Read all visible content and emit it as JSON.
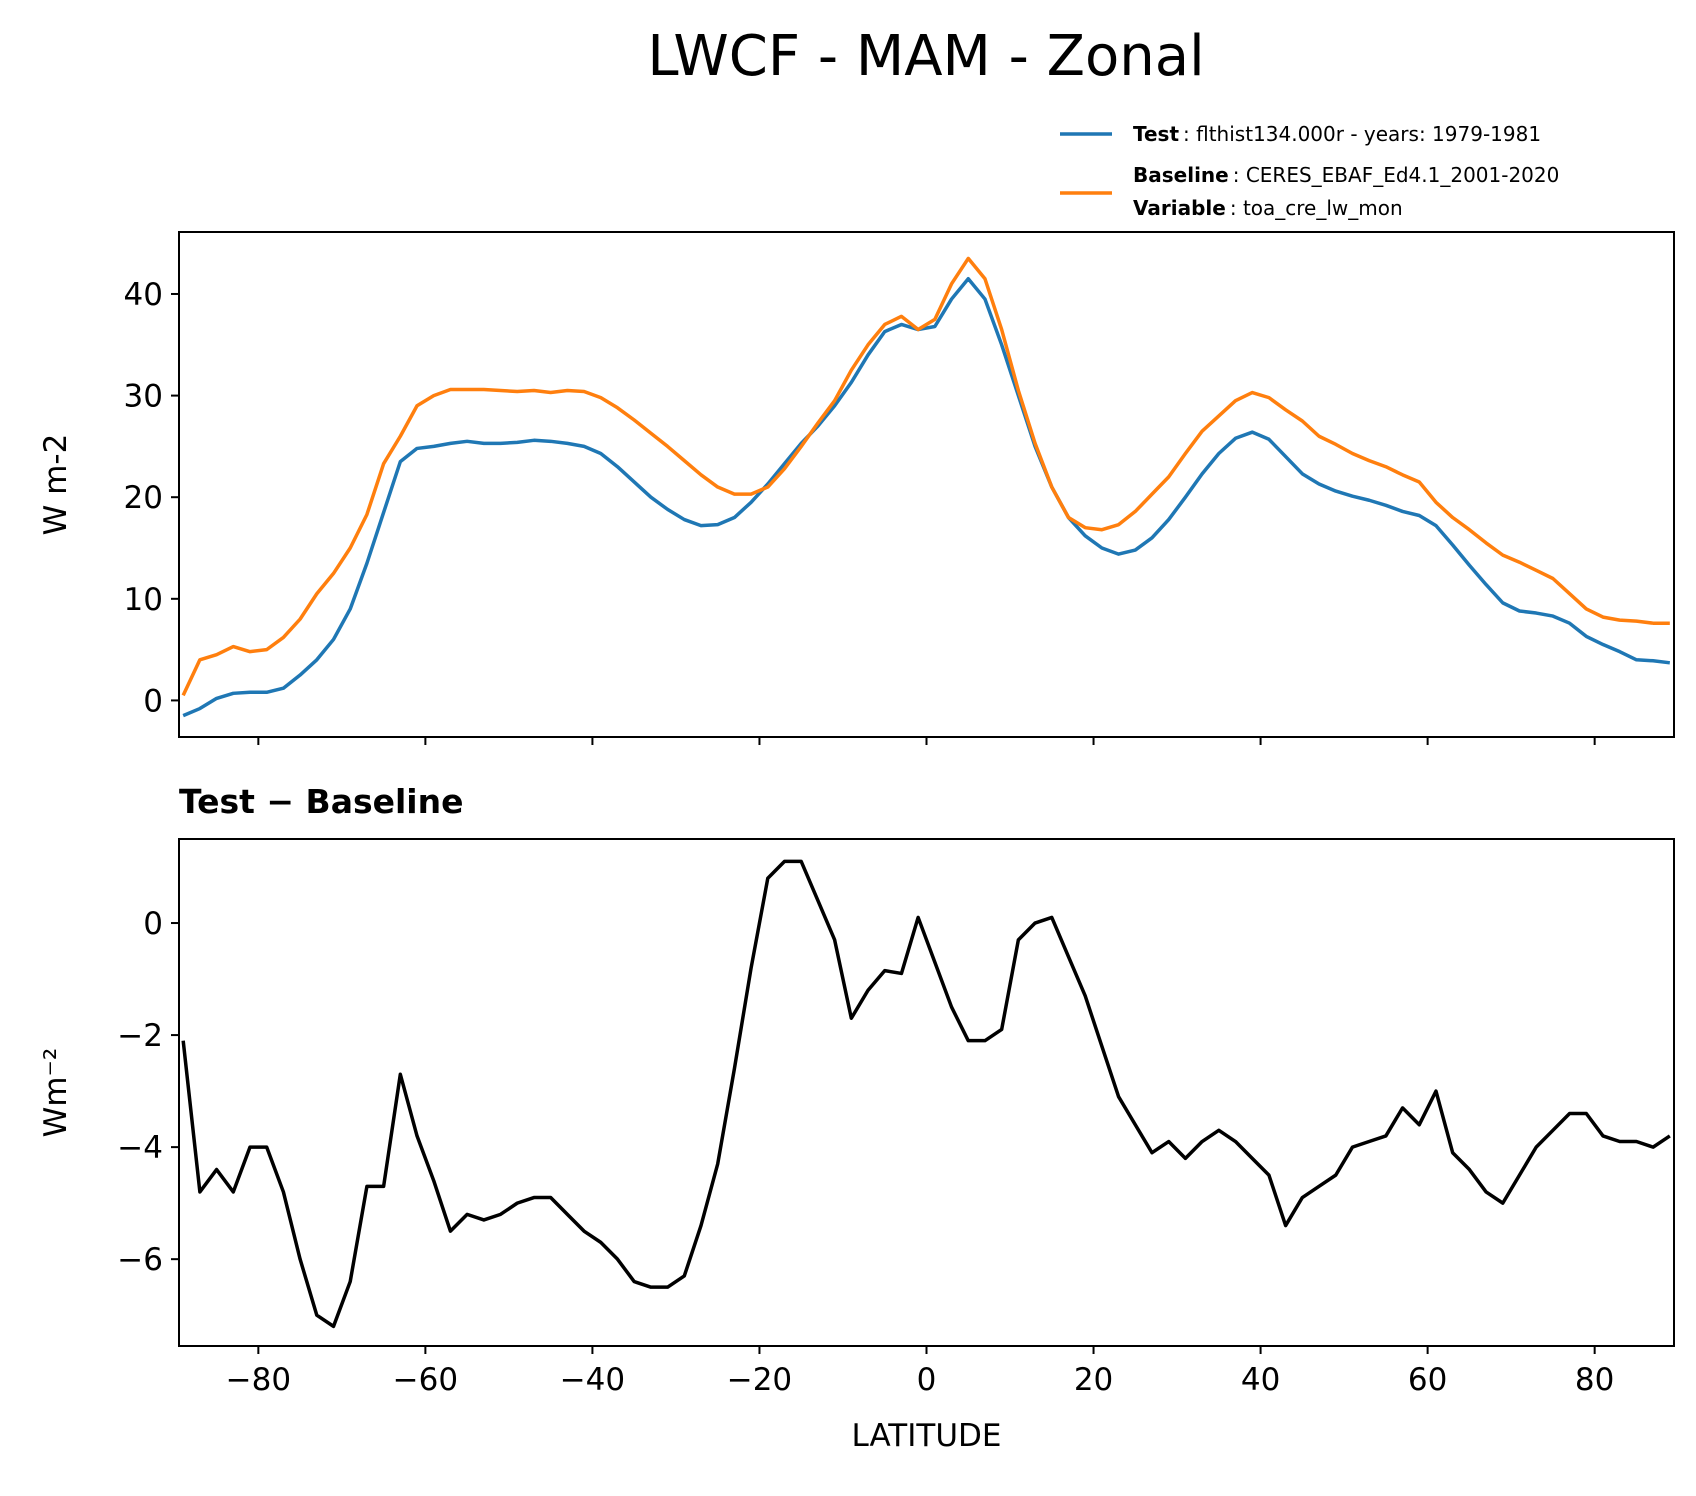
{
  "title": "LWCF - MAM - Zonal",
  "chart_data": [
    {
      "type": "line",
      "ylabel": "W m-2",
      "x": [
        -89,
        -87,
        -85,
        -83,
        -81,
        -79,
        -77,
        -75,
        -73,
        -71,
        -69,
        -67,
        -65,
        -63,
        -61,
        -59,
        -57,
        -55,
        -53,
        -51,
        -49,
        -47,
        -45,
        -43,
        -41,
        -39,
        -37,
        -35,
        -33,
        -31,
        -29,
        -27,
        -25,
        -23,
        -21,
        -19,
        -17,
        -15,
        -13,
        -11,
        -9,
        -7,
        -5,
        -3,
        -1,
        1,
        3,
        5,
        7,
        9,
        11,
        13,
        15,
        17,
        19,
        21,
        23,
        25,
        27,
        29,
        31,
        33,
        35,
        37,
        39,
        41,
        43,
        45,
        47,
        49,
        51,
        53,
        55,
        57,
        59,
        61,
        63,
        65,
        67,
        69,
        71,
        73,
        75,
        77,
        79,
        81,
        83,
        85,
        87,
        89
      ],
      "series": [
        {
          "name": "Test",
          "detail": ": flthist134.000r - years: 1979-1981",
          "color": "#1f77b4",
          "values": [
            -1.5,
            -0.8,
            0.2,
            0.7,
            0.8,
            0.8,
            1.2,
            2.5,
            4.0,
            6.0,
            9.0,
            13.5,
            18.5,
            23.5,
            24.8,
            25.0,
            25.3,
            25.5,
            25.3,
            25.3,
            25.4,
            25.6,
            25.5,
            25.3,
            25.0,
            24.3,
            23.0,
            21.5,
            20.0,
            18.8,
            17.8,
            17.2,
            17.3,
            18.0,
            19.5,
            21.3,
            23.3,
            25.3,
            27.0,
            29.0,
            31.3,
            34.0,
            36.3,
            37.0,
            36.5,
            36.8,
            39.5,
            41.5,
            39.5,
            35.0,
            30.0,
            25.0,
            21.0,
            18.0,
            16.2,
            15.0,
            14.4,
            14.8,
            16.0,
            17.8,
            20.0,
            22.3,
            24.3,
            25.8,
            26.4,
            25.7,
            24.0,
            22.3,
            21.3,
            20.6,
            20.1,
            19.7,
            19.2,
            18.6,
            18.2,
            17.2,
            15.3,
            13.3,
            11.4,
            9.6,
            8.8,
            8.6,
            8.3,
            7.6,
            6.3,
            5.5,
            4.8,
            4.0,
            3.9,
            3.7
          ]
        },
        {
          "name": "Baseline",
          "detail": ": CERES_EBAF_Ed4.1_2001-2020",
          "extra_name": "Variable",
          "extra_detail": ": toa_cre_lw_mon",
          "color": "#ff7f0e",
          "values": [
            0.5,
            4.0,
            4.5,
            5.3,
            4.8,
            5.0,
            6.2,
            8.0,
            10.5,
            12.5,
            15.0,
            18.3,
            23.3,
            26.0,
            29.0,
            30.0,
            30.6,
            30.6,
            30.6,
            30.5,
            30.4,
            30.5,
            30.3,
            30.5,
            30.4,
            29.8,
            28.8,
            27.6,
            26.3,
            25.0,
            23.6,
            22.2,
            21.0,
            20.3,
            20.3,
            21.0,
            22.8,
            25.0,
            27.3,
            29.5,
            32.5,
            35.0,
            37.0,
            37.8,
            36.5,
            37.5,
            41.0,
            43.5,
            41.5,
            36.5,
            30.5,
            25.3,
            21.0,
            18.0,
            17.0,
            16.8,
            17.3,
            18.6,
            20.3,
            22.0,
            24.3,
            26.5,
            28.0,
            29.5,
            30.3,
            29.8,
            28.6,
            27.5,
            26.0,
            25.2,
            24.3,
            23.6,
            23.0,
            22.2,
            21.5,
            19.5,
            18.0,
            16.8,
            15.5,
            14.3,
            13.6,
            12.8,
            12.0,
            10.5,
            9.0,
            8.2,
            7.9,
            7.8,
            7.6,
            7.6
          ]
        }
      ],
      "xlim": [
        -89.5,
        89.5
      ],
      "xticks": [
        -80,
        -60,
        -40,
        -20,
        0,
        20,
        40,
        60,
        80
      ],
      "ylim": [
        -3.6,
        46.1
      ],
      "yticks": [
        0,
        10,
        20,
        30,
        40
      ]
    },
    {
      "type": "line",
      "title": "Test − Baseline",
      "ylabel": "Wm⁻²",
      "xlabel": "LATITUDE",
      "x": [
        -89,
        -87,
        -85,
        -83,
        -81,
        -79,
        -77,
        -75,
        -73,
        -71,
        -69,
        -67,
        -65,
        -63,
        -61,
        -59,
        -57,
        -55,
        -53,
        -51,
        -49,
        -47,
        -45,
        -43,
        -41,
        -39,
        -37,
        -35,
        -33,
        -31,
        -29,
        -27,
        -25,
        -23,
        -21,
        -19,
        -17,
        -15,
        -13,
        -11,
        -9,
        -7,
        -5,
        -3,
        -1,
        1,
        3,
        5,
        7,
        9,
        11,
        13,
        15,
        17,
        19,
        21,
        23,
        25,
        27,
        29,
        31,
        33,
        35,
        37,
        39,
        41,
        43,
        45,
        47,
        49,
        51,
        53,
        55,
        57,
        59,
        61,
        63,
        65,
        67,
        69,
        71,
        73,
        75,
        77,
        79,
        81,
        83,
        85,
        87,
        89
      ],
      "series": [
        {
          "color": "#000000",
          "values": [
            -2.1,
            -4.8,
            -4.4,
            -4.8,
            -4.0,
            -4.0,
            -4.8,
            -6.0,
            -7.0,
            -7.2,
            -6.4,
            -4.7,
            -4.7,
            -2.7,
            -3.8,
            -4.6,
            -5.5,
            -5.2,
            -5.3,
            -5.2,
            -5.0,
            -4.9,
            -4.9,
            -5.2,
            -5.5,
            -5.7,
            -6.0,
            -6.4,
            -6.5,
            -6.5,
            -6.3,
            -5.4,
            -4.3,
            -2.6,
            -0.8,
            0.8,
            1.1,
            1.1,
            0.4,
            -0.3,
            -1.7,
            -1.2,
            -0.85,
            -0.9,
            0.1,
            -0.7,
            -1.5,
            -2.1,
            -2.1,
            -1.9,
            -0.3,
            0.0,
            0.1,
            -0.6,
            -1.3,
            -2.2,
            -3.1,
            -3.6,
            -4.1,
            -3.9,
            -4.2,
            -3.9,
            -3.7,
            -3.9,
            -4.2,
            -4.5,
            -5.4,
            -4.9,
            -4.7,
            -4.5,
            -4.0,
            -3.9,
            -3.8,
            -3.3,
            -3.6,
            -3.0,
            -4.1,
            -4.4,
            -4.8,
            -5.0,
            -4.5,
            -4.0,
            -3.7,
            -3.4,
            -3.4,
            -3.8,
            -3.9,
            -3.9,
            -4.0,
            -3.8
          ]
        }
      ],
      "xlim": [
        -89.5,
        89.5
      ],
      "xticks": [
        {
          "value": -80,
          "label": "−80"
        },
        {
          "value": -60,
          "label": "−60"
        },
        {
          "value": -40,
          "label": "−40"
        },
        {
          "value": -20,
          "label": "−20"
        },
        0,
        20,
        40,
        60,
        80
      ],
      "ylim": [
        -7.55,
        1.5
      ],
      "yticks": [
        {
          "value": -6,
          "label": "−6"
        },
        {
          "value": -4,
          "label": "−4"
        },
        {
          "value": -2,
          "label": "−2"
        },
        0
      ]
    }
  ]
}
